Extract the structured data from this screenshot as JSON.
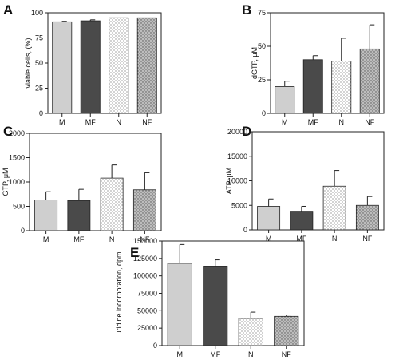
{
  "chart_data": [
    {
      "panel": "A",
      "type": "bar",
      "categories": [
        "M",
        "MF",
        "N",
        "NF"
      ],
      "values": [
        91,
        92,
        95,
        95
      ],
      "errors": [
        0.5,
        1,
        0,
        0
      ],
      "title": "",
      "xlabel": "",
      "ylabel": "viable cells, (%)",
      "ylim": [
        0,
        100
      ],
      "yticks": [
        "0",
        "25",
        "50",
        "75",
        "100"
      ],
      "fills": [
        "light-gray",
        "dark-gray",
        "dotted-white",
        "dotted-gray"
      ]
    },
    {
      "panel": "B",
      "type": "bar",
      "categories": [
        "M",
        "MF",
        "N",
        "NF"
      ],
      "values": [
        20,
        40,
        39,
        48
      ],
      "errors": [
        4,
        3,
        17,
        18
      ],
      "title": "",
      "xlabel": "",
      "ylabel": "dGTP, μM",
      "ylim": [
        0,
        75
      ],
      "yticks": [
        "0",
        "25",
        "50",
        "75"
      ],
      "fills": [
        "light-gray",
        "dark-gray",
        "dotted-white",
        "dotted-gray"
      ]
    },
    {
      "panel": "C",
      "type": "bar",
      "categories": [
        "M",
        "MF",
        "N",
        "NF"
      ],
      "values": [
        630,
        620,
        1080,
        840
      ],
      "errors": [
        170,
        230,
        270,
        350
      ],
      "title": "",
      "xlabel": "",
      "ylabel": "GTP, μM",
      "ylim": [
        0,
        2000
      ],
      "yticks": [
        "0",
        "500",
        "1000",
        "1500",
        "2000"
      ],
      "fills": [
        "light-gray",
        "dark-gray",
        "dotted-white",
        "dotted-gray"
      ]
    },
    {
      "panel": "D",
      "type": "bar",
      "categories": [
        "M",
        "MF",
        "N",
        "NF"
      ],
      "values": [
        4800,
        3800,
        8900,
        5000
      ],
      "errors": [
        1500,
        1000,
        3200,
        1800
      ],
      "title": "",
      "xlabel": "",
      "ylabel": "ATP, μM",
      "ylim": [
        0,
        20000
      ],
      "yticks": [
        "0",
        "5000",
        "10000",
        "15000",
        "20000"
      ],
      "fills": [
        "light-gray",
        "dark-gray",
        "dotted-white",
        "dotted-gray"
      ]
    },
    {
      "panel": "E",
      "type": "bar",
      "categories": [
        "M",
        "MF",
        "N",
        "NF"
      ],
      "values": [
        118000,
        114000,
        39000,
        42000
      ],
      "errors": [
        27000,
        9000,
        9000,
        2000
      ],
      "title": "",
      "xlabel": "",
      "ylabel": "uridine incorporation, dpm",
      "ylim": [
        0,
        150000
      ],
      "yticks": [
        "0",
        "25000",
        "50000",
        "75000",
        "100000",
        "125000",
        "150000"
      ],
      "fills": [
        "light-gray",
        "dark-gray",
        "dotted-white",
        "dotted-gray"
      ]
    }
  ],
  "colors": {
    "light_gray": "#cfcfcf",
    "dark_gray": "#4a4a4a",
    "dotted_white_bg": "#ffffff",
    "dotted_gray_bg": "#bdbdbd",
    "axis": "#222222"
  }
}
